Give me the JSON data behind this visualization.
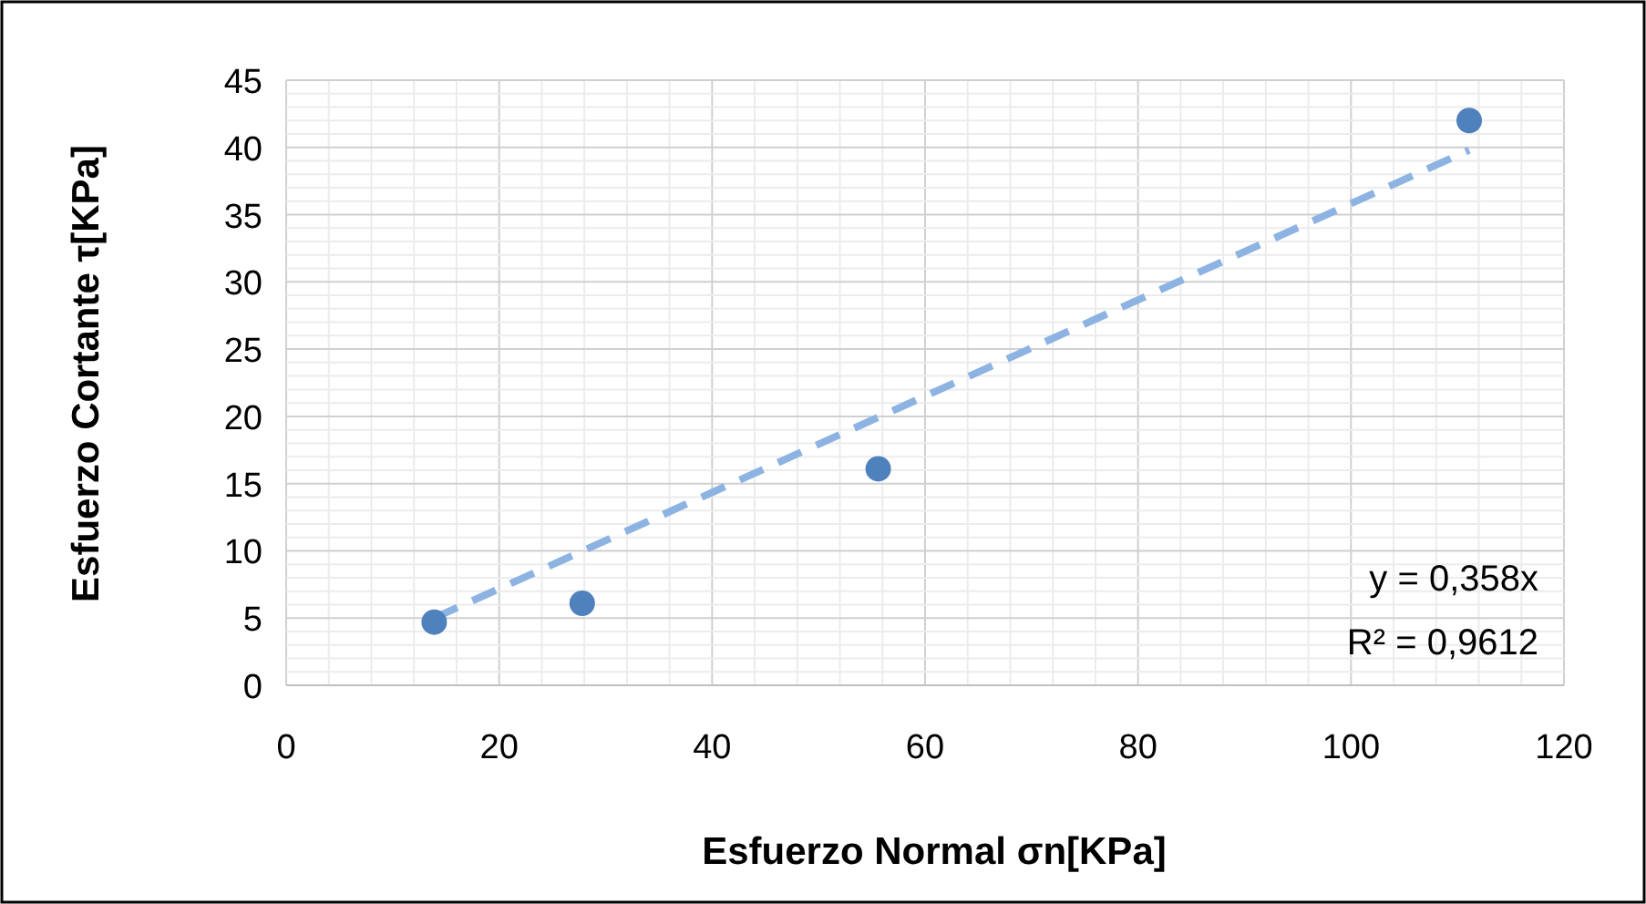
{
  "chart_data": {
    "type": "scatter",
    "xlabel": "Esfuerzo Normal σn[KPa]",
    "ylabel": "Esfuerzo Cortante τ[KPa]",
    "xlim": [
      0,
      120
    ],
    "xticks": [
      0,
      20,
      40,
      60,
      80,
      100,
      120
    ],
    "ylim": [
      0,
      45
    ],
    "yticks": [
      0,
      5,
      10,
      15,
      20,
      25,
      30,
      35,
      40,
      45
    ],
    "grid": true,
    "marker": "circle",
    "series": [
      {
        "color": "#4f81bd",
        "x": [
          13.9,
          27.8,
          55.6,
          111.1
        ],
        "values": [
          4.7,
          6.1,
          16.1,
          42
        ]
      },
      {
        "type": "line",
        "color": "#8db3e2",
        "line_style": "dashed",
        "marker": "none",
        "x": [
          13.9,
          111.1
        ],
        "values": [
          5.0,
          39.8
        ]
      }
    ],
    "annotations": [
      "y = 0,358x",
      "R² = 0,9612"
    ]
  }
}
